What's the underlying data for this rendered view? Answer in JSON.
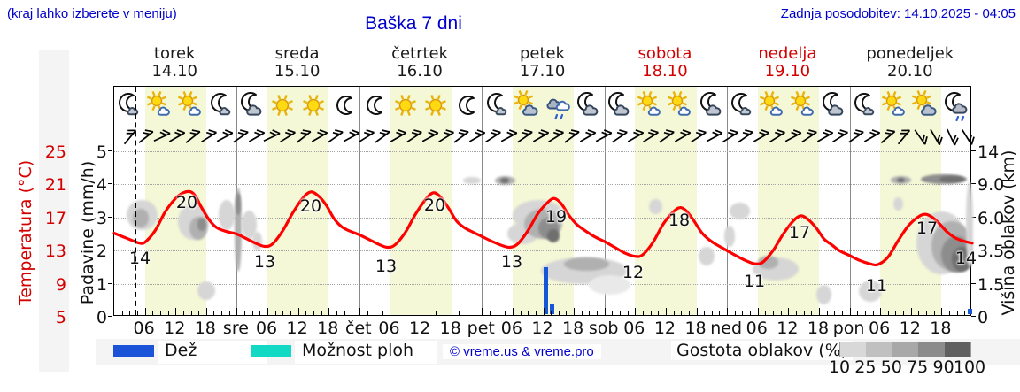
{
  "header": {
    "hint": "(kraj lahko izberete v meniju)",
    "title": "Baška 7 dni",
    "last_update": "Zadnja posodobitev: 14.10.2025 - 04:05"
  },
  "days": [
    {
      "name": "torek",
      "date": "14.10",
      "red": false
    },
    {
      "name": "sreda",
      "date": "15.10",
      "red": false
    },
    {
      "name": "četrtek",
      "date": "16.10",
      "red": false
    },
    {
      "name": "petek",
      "date": "17.10",
      "red": false
    },
    {
      "name": "sobota",
      "date": "18.10",
      "red": true
    },
    {
      "name": "nedelja",
      "date": "19.10",
      "red": true
    },
    {
      "name": "ponedeljek",
      "date": "20.10",
      "red": false
    }
  ],
  "icons": [
    "moon-cloud",
    "sun-cloud",
    "sun-cloud",
    "moon-cloud",
    "moon-bigcloud",
    "sun",
    "sun",
    "moon",
    "moon",
    "sun",
    "sun",
    "moon",
    "moon-cloud",
    "sun-graycloud",
    "rain-cloud",
    "moon-bigcloud",
    "moon-bigcloud",
    "sun-cloud",
    "sun-cloud",
    "moon-bigcloud",
    "moon-cloud",
    "sun-cloud",
    "sun-cloud",
    "moon-bigcloud",
    "moon-cloud",
    "sun-cloud",
    "sun-graycloud",
    "moon-rain"
  ],
  "axes": {
    "temp_label": "Temperatura (°C)",
    "temp_ticks": [
      "25",
      "21",
      "17",
      "13",
      "9",
      "5"
    ],
    "precip_label": "Padavine (mm/h)",
    "precip_ticks": [
      "5",
      "4",
      "3",
      "2",
      "1",
      "0"
    ],
    "cloud_label": "Višina oblakov (km)",
    "cloud_ticks": [
      "14",
      "9.0",
      "6.0",
      "3.5",
      "1.5",
      "0"
    ],
    "x_labels": [
      {
        "h": 6,
        "t": "06"
      },
      {
        "h": 12,
        "t": "12"
      },
      {
        "h": 18,
        "t": "18"
      },
      {
        "h": 24,
        "t": "sre"
      },
      {
        "h": 30,
        "t": "06"
      },
      {
        "h": 36,
        "t": "12"
      },
      {
        "h": 42,
        "t": "18"
      },
      {
        "h": 48,
        "t": "čet"
      },
      {
        "h": 54,
        "t": "06"
      },
      {
        "h": 60,
        "t": "12"
      },
      {
        "h": 66,
        "t": "18"
      },
      {
        "h": 72,
        "t": "pet"
      },
      {
        "h": 78,
        "t": "06"
      },
      {
        "h": 84,
        "t": "12"
      },
      {
        "h": 90,
        "t": "18"
      },
      {
        "h": 96,
        "t": "sob"
      },
      {
        "h": 102,
        "t": "06"
      },
      {
        "h": 108,
        "t": "12"
      },
      {
        "h": 114,
        "t": "18"
      },
      {
        "h": 120,
        "t": "ned"
      },
      {
        "h": 126,
        "t": "06"
      },
      {
        "h": 132,
        "t": "12"
      },
      {
        "h": 138,
        "t": "18"
      },
      {
        "h": 144,
        "t": "pon"
      },
      {
        "h": 150,
        "t": "06"
      },
      {
        "h": 156,
        "t": "12"
      },
      {
        "h": 162,
        "t": "18"
      }
    ]
  },
  "legend": {
    "rain_label": "Dež",
    "showers_label": "Možnost ploh",
    "copyright": "© vreme.us & vreme.pro",
    "density_label": "Gostota oblakov (%)",
    "density_ticks": [
      "10",
      "25",
      "50",
      "75",
      "90",
      "100"
    ],
    "gradient": [
      "#d8d8d8",
      "#c0c0c0",
      "#a8a8a8",
      "#8b8b8b",
      "#5f5f5f"
    ],
    "rain_color": "#1a52d8",
    "showers_color": "#12d9c4"
  },
  "colors": {
    "curve": "#ff0000",
    "band": "#f5f8d6",
    "density_map": {
      "10": "#e9e9e9",
      "25": "#d6d6d6",
      "50": "#b0b0b0",
      "75": "#8d8d8d",
      "90": "#6f6f6f",
      "100": "#585858"
    }
  },
  "chart_data": {
    "type": "line",
    "title": "Baška 7 dni",
    "x_unit": "hours from 14.10.2025 00:00",
    "xlim": [
      0,
      168
    ],
    "ylim_temp": [
      5,
      25
    ],
    "ylim_precip": [
      0,
      5
    ],
    "cloud_km_ticks": [
      0,
      1.5,
      3.5,
      6,
      9,
      14
    ],
    "now_line_h": 4.05,
    "temperature_series": {
      "name": "Temperatura (°C)",
      "points": [
        [
          0,
          15.1
        ],
        [
          2,
          14.6
        ],
        [
          4,
          14.1
        ],
        [
          5,
          13.9
        ],
        [
          6,
          14.0
        ],
        [
          8,
          15.4
        ],
        [
          10,
          17.7
        ],
        [
          12,
          19.3
        ],
        [
          13.5,
          20.0
        ],
        [
          15,
          20.1
        ],
        [
          16,
          19.5
        ],
        [
          17,
          18.3
        ],
        [
          18.5,
          16.8
        ],
        [
          20,
          15.8
        ],
        [
          22,
          15.3
        ],
        [
          24,
          15.0
        ],
        [
          26,
          14.4
        ],
        [
          28,
          13.8
        ],
        [
          29.5,
          13.5
        ],
        [
          31,
          13.8
        ],
        [
          33,
          15.4
        ],
        [
          35,
          17.6
        ],
        [
          37,
          19.4
        ],
        [
          38.5,
          20.1
        ],
        [
          40,
          19.6
        ],
        [
          41.5,
          18.5
        ],
        [
          43,
          16.9
        ],
        [
          44.5,
          15.9
        ],
        [
          46,
          15.4
        ],
        [
          48,
          14.9
        ],
        [
          50,
          14.3
        ],
        [
          52,
          13.7
        ],
        [
          53.5,
          13.4
        ],
        [
          55,
          13.7
        ],
        [
          57,
          15.2
        ],
        [
          59,
          17.4
        ],
        [
          61,
          19.2
        ],
        [
          62.5,
          20.0
        ],
        [
          64,
          19.4
        ],
        [
          65.5,
          18.1
        ],
        [
          67,
          16.6
        ],
        [
          68.5,
          15.8
        ],
        [
          70,
          15.3
        ],
        [
          72,
          14.7
        ],
        [
          74,
          14.1
        ],
        [
          76,
          13.6
        ],
        [
          77.5,
          13.4
        ],
        [
          79,
          13.8
        ],
        [
          81,
          15.4
        ],
        [
          83,
          17.5
        ],
        [
          85,
          18.9
        ],
        [
          86.2,
          19.3
        ],
        [
          87.5,
          18.7
        ],
        [
          89,
          17.3
        ],
        [
          90.5,
          16.2
        ],
        [
          92,
          15.5
        ],
        [
          94,
          14.7
        ],
        [
          96,
          14.1
        ],
        [
          98,
          13.4
        ],
        [
          100,
          12.7
        ],
        [
          102,
          12.3
        ],
        [
          103.5,
          12.5
        ],
        [
          105.5,
          14.0
        ],
        [
          107.5,
          16.2
        ],
        [
          109.5,
          17.7
        ],
        [
          110.8,
          18.2
        ],
        [
          112,
          17.8
        ],
        [
          113.5,
          16.6
        ],
        [
          115,
          15.2
        ],
        [
          116.5,
          14.3
        ],
        [
          118,
          13.7
        ],
        [
          120,
          13.0
        ],
        [
          122,
          12.3
        ],
        [
          124,
          11.7
        ],
        [
          125.5,
          11.4
        ],
        [
          127,
          11.6
        ],
        [
          129,
          13.0
        ],
        [
          131,
          15.0
        ],
        [
          133,
          16.6
        ],
        [
          134.5,
          17.2
        ],
        [
          136,
          16.7
        ],
        [
          137.5,
          15.7
        ],
        [
          139,
          14.4
        ],
        [
          140.5,
          13.7
        ],
        [
          142,
          13.0
        ],
        [
          144,
          12.4
        ],
        [
          146,
          11.8
        ],
        [
          148,
          11.4
        ],
        [
          149.5,
          11.3
        ],
        [
          151.5,
          12.2
        ],
        [
          153.5,
          14.2
        ],
        [
          155.5,
          16.0
        ],
        [
          157.5,
          17.1
        ],
        [
          158.8,
          17.4
        ],
        [
          160,
          17.1
        ],
        [
          161.5,
          16.3
        ],
        [
          163,
          15.3
        ],
        [
          164.5,
          14.6
        ],
        [
          166,
          14.2
        ],
        [
          168,
          13.9
        ]
      ]
    },
    "temp_point_labels": [
      {
        "v": "14",
        "x": 157,
        "y": 291
      },
      {
        "v": "20",
        "x": 210,
        "y": 228
      },
      {
        "v": "13",
        "x": 298,
        "y": 295
      },
      {
        "v": "20",
        "x": 350,
        "y": 232
      },
      {
        "v": "13",
        "x": 435,
        "y": 300
      },
      {
        "v": "20",
        "x": 490,
        "y": 231
      },
      {
        "v": "13",
        "x": 577,
        "y": 295
      },
      {
        "v": "19",
        "x": 627,
        "y": 244
      },
      {
        "v": "12",
        "x": 714,
        "y": 307
      },
      {
        "v": "18",
        "x": 766,
        "y": 248
      },
      {
        "v": "11",
        "x": 851,
        "y": 317
      },
      {
        "v": "17",
        "x": 902,
        "y": 262
      },
      {
        "v": "11",
        "x": 989,
        "y": 322
      },
      {
        "v": "17",
        "x": 1046,
        "y": 257
      },
      {
        "v": "14",
        "x": 1090,
        "y": 291
      }
    ],
    "rain_bars_mmh": [
      [
        84.6,
        1.4
      ],
      [
        85.7,
        0.28
      ],
      [
        167.5,
        0.16
      ]
    ],
    "clouds": [
      [
        5.5,
        6.3,
        6,
        2.5,
        "25"
      ],
      [
        5.2,
        6.0,
        3,
        1.5,
        "50"
      ],
      [
        15.5,
        5.8,
        6,
        3,
        "25"
      ],
      [
        16.5,
        5.2,
        3.5,
        1.8,
        "50"
      ],
      [
        17.2,
        5.5,
        1.8,
        1,
        "75"
      ],
      [
        18,
        1.2,
        3.5,
        0.9,
        "25"
      ],
      [
        22,
        6.3,
        3,
        2.5,
        "25"
      ],
      [
        24.3,
        5.5,
        1.4,
        6.5,
        "50"
      ],
      [
        24.3,
        7.2,
        1,
        2,
        "75"
      ],
      [
        26.5,
        5.5,
        3,
        2.2,
        "25"
      ],
      [
        28,
        4.2,
        2,
        1.4,
        "25"
      ],
      [
        70,
        9.6,
        3.5,
        1.1,
        "25"
      ],
      [
        76.5,
        9.6,
        4,
        1.3,
        "50"
      ],
      [
        76.5,
        9.6,
        1.8,
        0.8,
        "90"
      ],
      [
        80,
        4.8,
        6,
        1.6,
        "25"
      ],
      [
        83,
        6.3,
        10,
        2.6,
        "25"
      ],
      [
        84,
        5.6,
        7.5,
        2.4,
        "50"
      ],
      [
        85,
        5.2,
        4,
        1.6,
        "75"
      ],
      [
        86,
        4.6,
        2.5,
        1,
        "90"
      ],
      [
        92,
        2.3,
        17,
        1.6,
        "25"
      ],
      [
        92.5,
        2.7,
        9,
        0.8,
        "50"
      ],
      [
        97,
        1.5,
        8,
        1,
        "10"
      ],
      [
        106,
        7,
        2.5,
        1.4,
        "25"
      ],
      [
        116,
        3.2,
        3,
        1.2,
        "25"
      ],
      [
        120.5,
        4.6,
        2.2,
        1.6,
        "25"
      ],
      [
        122.5,
        6.6,
        4,
        1.5,
        "25"
      ],
      [
        129.5,
        2.4,
        9,
        1.4,
        "25"
      ],
      [
        128,
        2.8,
        4,
        0.8,
        "50"
      ],
      [
        139,
        1,
        3,
        0.9,
        "25"
      ],
      [
        148,
        1.2,
        4.5,
        1,
        "25"
      ],
      [
        153.5,
        7.2,
        2,
        1.2,
        "25"
      ],
      [
        154,
        9.7,
        4,
        1.2,
        "50"
      ],
      [
        154,
        9.7,
        1.6,
        0.7,
        "90"
      ],
      [
        162.5,
        9.8,
        9,
        1.5,
        "75"
      ],
      [
        164,
        9.8,
        5,
        1,
        "90"
      ],
      [
        162,
        4.3,
        10,
        4.5,
        "25"
      ],
      [
        164,
        4,
        8,
        3.4,
        "50"
      ],
      [
        165,
        3.4,
        6,
        2.4,
        "75"
      ],
      [
        166,
        3,
        4,
        1.5,
        "90"
      ],
      [
        167.5,
        6,
        1.5,
        7,
        "25"
      ]
    ],
    "wind_barb_angles": [
      -50,
      -38,
      -25,
      -30,
      -38,
      -32,
      -28,
      -35,
      -30,
      -25,
      -32,
      -38,
      -30,
      -35,
      -28,
      -32,
      -36,
      -30,
      -34,
      -28,
      -32,
      -36,
      -30,
      -33,
      -28,
      -35,
      -30,
      -32,
      -36,
      -30,
      -28,
      -34,
      -30,
      -32,
      -35,
      -30,
      -33,
      -28,
      -32,
      -35,
      -30,
      -32,
      -28,
      -34,
      -30,
      -32,
      -35,
      -30,
      -40,
      -50,
      55,
      60,
      65,
      58
    ]
  }
}
